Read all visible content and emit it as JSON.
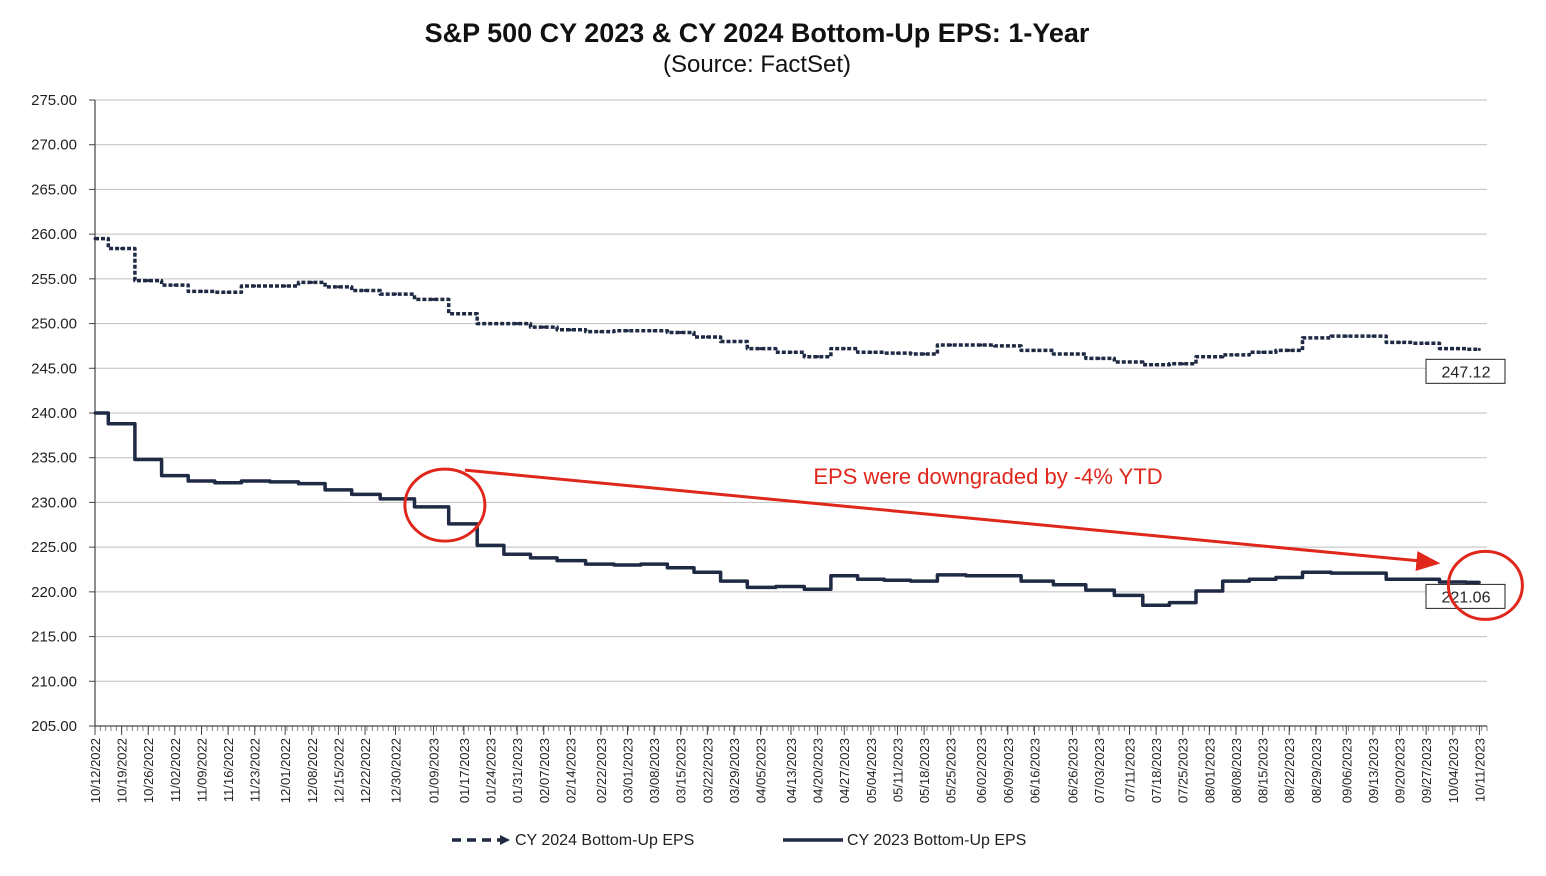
{
  "chart_data": {
    "type": "line",
    "title": "S&P 500 CY 2023 & CY 2024 Bottom-Up  EPS: 1-Year",
    "subtitle": "(Source: FactSet)",
    "ylim": [
      205,
      275
    ],
    "y_ticks": [
      "205.00",
      "210.00",
      "215.00",
      "220.00",
      "225.00",
      "230.00",
      "235.00",
      "240.00",
      "245.00",
      "250.00",
      "255.00",
      "260.00",
      "265.00",
      "270.00",
      "275.00"
    ],
    "x_tick_labels": [
      "10/12/2022",
      "10/19/2022",
      "10/26/2022",
      "11/02/2022",
      "11/09/2022",
      "11/16/2022",
      "11/23/2022",
      "12/01/2022",
      "12/08/2022",
      "12/15/2022",
      "12/22/2022",
      "12/30/2022",
      "01/09/2023",
      "01/17/2023",
      "01/24/2023",
      "01/31/2023",
      "02/07/2023",
      "02/14/2023",
      "02/22/2023",
      "03/01/2023",
      "03/08/2023",
      "03/15/2023",
      "03/22/2023",
      "03/29/2023",
      "04/05/2023",
      "04/13/2023",
      "04/20/2023",
      "04/27/2023",
      "05/04/2023",
      "05/11/2023",
      "05/18/2023",
      "05/25/2023",
      "06/02/2023",
      "06/09/2023",
      "06/16/2023",
      "06/26/2023",
      "07/03/2023",
      "07/11/2023",
      "07/18/2023",
      "07/25/2023",
      "08/01/2023",
      "08/08/2023",
      "08/15/2023",
      "08/22/2023",
      "08/29/2023",
      "09/06/2023",
      "09/13/2023",
      "09/20/2023",
      "09/27/2023",
      "10/04/2023",
      "10/11/2023"
    ],
    "grid": true,
    "legend_position": "bottom",
    "series": [
      {
        "name": "CY 2024 Bottom-Up EPS",
        "style": "dashed",
        "color": "#1f2a44",
        "x": [
          "10/12/2022",
          "10/19/2022",
          "10/26/2022",
          "11/02/2022",
          "11/09/2022",
          "11/16/2022",
          "11/23/2022",
          "12/01/2022",
          "12/08/2022",
          "12/15/2022",
          "12/22/2022",
          "12/30/2022",
          "01/09/2023",
          "01/17/2023",
          "01/24/2023",
          "01/31/2023",
          "02/07/2023",
          "02/14/2023",
          "02/22/2023",
          "03/01/2023",
          "03/08/2023",
          "03/15/2023",
          "03/22/2023",
          "03/29/2023",
          "04/05/2023",
          "04/13/2023",
          "04/20/2023",
          "04/27/2023",
          "05/04/2023",
          "05/11/2023",
          "05/18/2023",
          "05/25/2023",
          "06/02/2023",
          "06/09/2023",
          "06/16/2023",
          "06/26/2023",
          "07/03/2023",
          "07/11/2023",
          "07/18/2023",
          "07/25/2023",
          "08/01/2023",
          "08/08/2023",
          "08/15/2023",
          "08/22/2023",
          "08/29/2023",
          "09/06/2023",
          "09/13/2023",
          "09/20/2023",
          "09/27/2023",
          "10/04/2023",
          "10/11/2023"
        ],
        "values": [
          259.5,
          258.4,
          254.8,
          254.3,
          253.6,
          253.5,
          254.2,
          254.2,
          254.6,
          254.1,
          253.7,
          253.3,
          252.7,
          251.1,
          250.0,
          250.0,
          249.6,
          249.3,
          249.1,
          249.2,
          249.2,
          249.0,
          248.5,
          248.0,
          247.2,
          246.8,
          246.3,
          247.2,
          246.8,
          246.7,
          246.6,
          247.6,
          247.6,
          247.5,
          247.0,
          246.6,
          246.1,
          245.7,
          245.4,
          245.5,
          246.3,
          246.5,
          246.8,
          247.0,
          248.4,
          248.6,
          248.6,
          247.9,
          247.8,
          247.2,
          247.12
        ]
      },
      {
        "name": "CY 2023 Bottom-Up EPS",
        "style": "solid",
        "color": "#1f2a44",
        "x": [
          "10/12/2022",
          "10/19/2022",
          "10/26/2022",
          "11/02/2022",
          "11/09/2022",
          "11/16/2022",
          "11/23/2022",
          "12/01/2022",
          "12/08/2022",
          "12/15/2022",
          "12/22/2022",
          "12/30/2022",
          "01/09/2023",
          "01/17/2023",
          "01/24/2023",
          "01/31/2023",
          "02/07/2023",
          "02/14/2023",
          "02/22/2023",
          "03/01/2023",
          "03/08/2023",
          "03/15/2023",
          "03/22/2023",
          "03/29/2023",
          "04/05/2023",
          "04/13/2023",
          "04/20/2023",
          "04/27/2023",
          "05/04/2023",
          "05/11/2023",
          "05/18/2023",
          "05/25/2023",
          "06/02/2023",
          "06/09/2023",
          "06/16/2023",
          "06/26/2023",
          "07/03/2023",
          "07/11/2023",
          "07/18/2023",
          "07/25/2023",
          "08/01/2023",
          "08/08/2023",
          "08/15/2023",
          "08/22/2023",
          "08/29/2023",
          "09/06/2023",
          "09/13/2023",
          "09/20/2023",
          "09/27/2023",
          "10/04/2023",
          "10/11/2023"
        ],
        "values": [
          240.0,
          238.8,
          234.8,
          233.0,
          232.4,
          232.2,
          232.4,
          232.3,
          232.1,
          231.4,
          230.9,
          230.4,
          229.5,
          227.6,
          225.2,
          224.2,
          223.8,
          223.5,
          223.1,
          223.0,
          223.1,
          222.7,
          222.2,
          221.2,
          220.5,
          220.6,
          220.3,
          221.8,
          221.4,
          221.3,
          221.2,
          221.9,
          221.8,
          221.8,
          221.2,
          220.8,
          220.2,
          219.6,
          218.5,
          218.8,
          220.1,
          221.2,
          221.4,
          221.6,
          222.2,
          222.1,
          222.1,
          221.4,
          221.4,
          221.1,
          221.06
        ]
      }
    ],
    "end_labels": [
      "247.12",
      "221.06"
    ],
    "annotation": {
      "text": "EPS were downgraded by -4% YTD",
      "from_x": "01/12/2023",
      "from_y": 229.7,
      "to_x": "10/11/2023",
      "to_y": 221.06
    },
    "colors": {
      "line": "#1f2a44",
      "annotation": "#e0271c",
      "grid": "#bfbfbf"
    }
  }
}
